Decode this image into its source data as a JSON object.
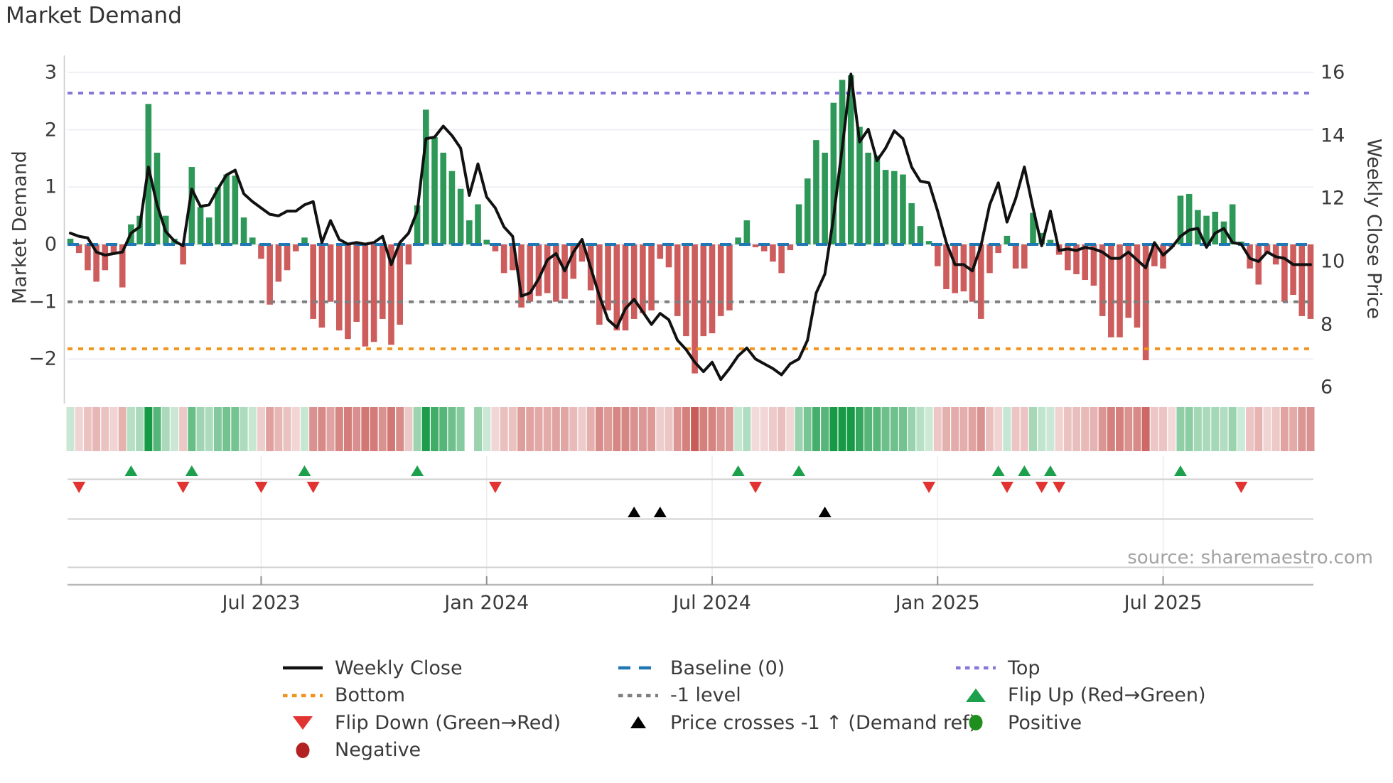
{
  "title": "Market Demand",
  "source": "source: sharemaestro.com",
  "axes": {
    "left_label": "Market Demand",
    "right_label": "Weekly Close Price",
    "left_ticks": [
      {
        "label": "3",
        "value": 3
      },
      {
        "label": "2",
        "value": 2
      },
      {
        "label": "1",
        "value": 1
      },
      {
        "label": "0",
        "value": 0
      },
      {
        "label": "−1",
        "value": -1
      },
      {
        "label": "−2",
        "value": -2
      }
    ],
    "right_ticks": [
      {
        "label": "16",
        "value": 16
      },
      {
        "label": "14",
        "value": 14
      },
      {
        "label": "12",
        "value": 12
      },
      {
        "label": "10",
        "value": 10
      },
      {
        "label": "8",
        "value": 8
      },
      {
        "label": "6",
        "value": 6
      }
    ],
    "x_ticks": [
      "Jul 2023",
      "Jan 2024",
      "Jul 2024",
      "Jan 2025",
      "Jul 2025"
    ]
  },
  "colors": {
    "bar_positive": "#2e9858",
    "bar_negative": "#cd5c5c",
    "price_line": "#111111",
    "baseline": "#1f77b4",
    "top_line": "#8677d9",
    "bottom_line": "#f0941c",
    "minus_one_line": "#7f7f7f",
    "flip_up": "#1ca04c",
    "flip_down": "#e23333",
    "price_cross": "#000000",
    "positive_dot": "#1e8e1e",
    "negative_dot": "#b22222",
    "heat_green": "#179a46",
    "heat_red": "#c4524e",
    "grid": "#eef0f5",
    "spine": "#cccccc",
    "subline": "#cfcfcf",
    "axisline": "#b8b8b8"
  },
  "legend": {
    "items": [
      {
        "label": "Weekly Close",
        "marker": "line-black"
      },
      {
        "label": "Baseline (0)",
        "marker": "dash-blue"
      },
      {
        "label": "Top",
        "marker": "dot-purple"
      },
      {
        "label": "Bottom",
        "marker": "dot-orange"
      },
      {
        "label": "-1 level",
        "marker": "dot-gray"
      },
      {
        "label": "Flip Up (Red→Green)",
        "marker": "tri-up-green"
      },
      {
        "label": "Flip Down (Green→Red)",
        "marker": "tri-down-red"
      },
      {
        "label": "Price crosses -1 ↑ (Demand ref)",
        "marker": "tri-up-black"
      },
      {
        "label": "Positive",
        "marker": "circle-green"
      },
      {
        "label": "Negative",
        "marker": "circle-darkred"
      }
    ]
  },
  "chart_data": {
    "type": "bar",
    "subtype": "weekly bar + line combo with signal heatmap and event markers",
    "x_unit": "weeks",
    "x_tick_labels": [
      "Jul 2023",
      "Jan 2024",
      "Jul 2024",
      "Jan 2025",
      "Jul 2025"
    ],
    "x_tick_week_indices": [
      22,
      48,
      74,
      100,
      126
    ],
    "ylabel_left": "Market Demand",
    "ylim_left": [
      -2.6,
      3.25
    ],
    "ylabel_right": "Weekly Close Price",
    "ylim_right": [
      5.45,
      16.35
    ],
    "grid": "horizontal only",
    "legend_position": "below chart, 3 columns",
    "reference_lines": {
      "top": 2.64,
      "baseline": 0,
      "minus_one_level": -1,
      "bottom": -1.82
    },
    "heatmap_gap_weeks": [
      46
    ],
    "flip_up_weeks": [
      7,
      14,
      27,
      40,
      77,
      84,
      107,
      110,
      113,
      128
    ],
    "flip_down_weeks": [
      1,
      13,
      22,
      28,
      49,
      79,
      99,
      108,
      112,
      114,
      135
    ],
    "price_cross_weeks": [
      65,
      68,
      87
    ],
    "series": [
      {
        "name": "Market Demand",
        "axis": "left",
        "style": "bars green/red by sign",
        "values": [
          0.1,
          -0.15,
          -0.45,
          -0.65,
          -0.45,
          -0.15,
          -0.75,
          0.35,
          0.5,
          2.45,
          1.6,
          0.5,
          0.1,
          -0.35,
          1.35,
          0.65,
          0.47,
          1.0,
          1.22,
          1.2,
          0.47,
          0.12,
          -0.25,
          -1.05,
          -0.65,
          -0.45,
          -0.12,
          0.12,
          -1.3,
          -1.45,
          -1.0,
          -1.5,
          -1.65,
          -1.35,
          -1.78,
          -1.7,
          -1.3,
          -1.75,
          -1.4,
          -0.35,
          0.68,
          2.35,
          1.87,
          1.6,
          1.28,
          0.97,
          0.42,
          0.7,
          0.08,
          -0.12,
          -0.5,
          -0.45,
          -1.1,
          -1.0,
          -0.9,
          -0.85,
          -1.0,
          -0.95,
          -0.6,
          -0.3,
          -0.8,
          -1.4,
          -1.15,
          -1.5,
          -1.5,
          -1.3,
          -1.2,
          -1.15,
          -0.25,
          -0.4,
          -1.25,
          -1.6,
          -2.25,
          -1.6,
          -1.55,
          -1.25,
          -1.15,
          0.12,
          0.42,
          -0.05,
          -0.12,
          -0.3,
          -0.5,
          -0.1,
          0.7,
          1.15,
          1.82,
          1.6,
          2.47,
          2.87,
          2.95,
          2.05,
          1.6,
          1.55,
          1.3,
          1.28,
          1.22,
          0.72,
          0.32,
          0.06,
          -0.38,
          -0.78,
          -0.85,
          -0.82,
          -1.0,
          -1.3,
          -0.5,
          -0.15,
          0.15,
          -0.42,
          -0.42,
          0.55,
          0.2,
          0.08,
          -0.18,
          -0.45,
          -0.52,
          -0.62,
          -0.72,
          -1.25,
          -1.62,
          -1.62,
          -1.28,
          -1.45,
          -2.02,
          -0.38,
          -0.42,
          -0.05,
          0.85,
          0.88,
          0.6,
          0.5,
          0.57,
          0.4,
          0.7,
          0.05,
          -0.42,
          -0.7,
          -0.15,
          -0.35,
          -1.0,
          -0.88,
          -1.25,
          -1.3
        ]
      },
      {
        "name": "Weekly Close",
        "axis": "right",
        "style": "black line",
        "values": [
          10.9,
          10.8,
          10.75,
          10.3,
          10.2,
          10.25,
          10.3,
          10.9,
          11.1,
          13.0,
          11.8,
          10.95,
          10.65,
          10.5,
          12.3,
          11.75,
          11.8,
          12.3,
          12.75,
          12.9,
          12.15,
          11.9,
          11.7,
          11.5,
          11.45,
          11.6,
          11.6,
          11.8,
          11.9,
          10.6,
          11.3,
          10.7,
          10.55,
          10.6,
          10.55,
          10.6,
          10.8,
          9.9,
          10.6,
          10.9,
          11.6,
          13.9,
          13.95,
          14.3,
          14.0,
          13.6,
          12.1,
          13.1,
          12.05,
          11.7,
          11.1,
          10.8,
          8.9,
          9.0,
          9.45,
          10.05,
          10.25,
          9.7,
          10.3,
          10.7,
          9.8,
          8.9,
          8.15,
          7.9,
          8.5,
          8.8,
          8.4,
          8.0,
          8.35,
          8.15,
          7.5,
          7.2,
          6.8,
          6.5,
          6.8,
          6.25,
          6.6,
          7.0,
          7.25,
          6.9,
          6.75,
          6.6,
          6.4,
          6.75,
          6.9,
          7.5,
          9.0,
          9.6,
          11.4,
          13.6,
          15.95,
          13.8,
          14.2,
          13.2,
          13.6,
          14.15,
          13.9,
          13.0,
          12.55,
          12.5,
          11.6,
          10.6,
          9.9,
          9.9,
          9.7,
          10.5,
          11.8,
          12.5,
          11.25,
          12.0,
          13.0,
          11.7,
          10.5,
          11.6,
          10.35,
          10.4,
          10.35,
          10.45,
          10.4,
          10.3,
          10.1,
          10.1,
          10.3,
          10.05,
          9.8,
          10.6,
          10.2,
          10.45,
          10.8,
          11.0,
          11.05,
          10.45,
          10.9,
          11.05,
          10.6,
          10.55,
          10.1,
          10.0,
          10.3,
          10.15,
          10.1,
          9.9,
          9.9,
          9.9
        ]
      }
    ]
  }
}
